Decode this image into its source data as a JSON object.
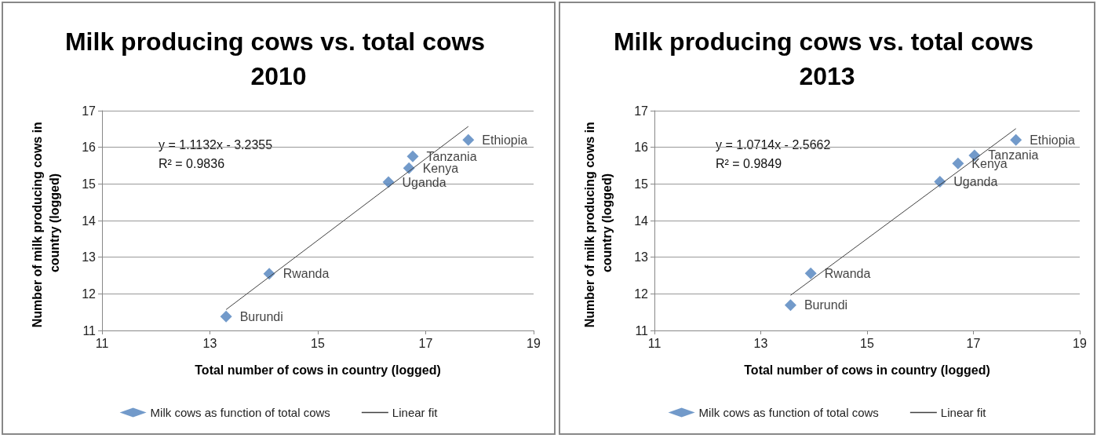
{
  "chart_data": [
    {
      "type": "scatter",
      "title": "Milk producing cows vs. total cows 2010",
      "xlabel": "Total number of cows in country (logged)",
      "ylabel": "Number of milk producing cows in country (logged)",
      "xlim": [
        11,
        19
      ],
      "xticks": [
        11,
        13,
        15,
        17,
        19
      ],
      "ylim": [
        11,
        17
      ],
      "yticks": [
        11,
        12,
        13,
        14,
        15,
        16,
        17
      ],
      "grid": "y",
      "legend": "bottom",
      "annotations": [
        "y = 1.1132x - 3.2355",
        "R² = 0.9836"
      ],
      "series": [
        {
          "name": "Milk cows as function of total cows",
          "color": "#4f81bd",
          "marker": "diamond",
          "x": [
            13.3,
            14.1,
            16.31,
            16.69,
            16.76,
            17.79
          ],
          "values": [
            11.38,
            12.55,
            15.05,
            15.43,
            15.75,
            16.2
          ],
          "value_labels": [
            "Burundi",
            "Rwanda",
            "Uganda",
            "Kenya",
            "Tanzania",
            "Ethiopia"
          ]
        },
        {
          "name": "Linear fit",
          "type": "line",
          "color": "#404040",
          "marker": "none",
          "line_style": "solid",
          "x": [
            13.3,
            17.79
          ],
          "values": [
            11.57,
            16.57
          ]
        }
      ]
    },
    {
      "type": "scatter",
      "title": "Milk producing cows vs. total cows 2013",
      "xlabel": "Total number of cows in country (logged)",
      "ylabel": "Number of milk producing cows in country (logged)",
      "xlim": [
        11,
        19
      ],
      "xticks": [
        11,
        13,
        15,
        17,
        19
      ],
      "ylim": [
        11,
        17
      ],
      "yticks": [
        11,
        12,
        13,
        14,
        15,
        16,
        17
      ],
      "grid": "y",
      "legend": "bottom",
      "annotations": [
        "y = 1.0714x - 2.5662",
        "R² = 0.9849"
      ],
      "series": [
        {
          "name": "Milk cows as function of total cows",
          "color": "#4f81bd",
          "marker": "diamond",
          "x": [
            13.56,
            13.94,
            16.37,
            16.71,
            17.02,
            17.8
          ],
          "values": [
            11.69,
            12.56,
            15.06,
            15.56,
            15.78,
            16.2
          ],
          "value_labels": [
            "Burundi",
            "Rwanda",
            "Uganda",
            "Kenya",
            "Tanzania",
            "Ethiopia"
          ]
        },
        {
          "name": "Linear fit",
          "type": "line",
          "color": "#404040",
          "marker": "none",
          "line_style": "solid",
          "x": [
            13.56,
            17.8
          ],
          "values": [
            11.96,
            16.51
          ]
        }
      ]
    }
  ]
}
